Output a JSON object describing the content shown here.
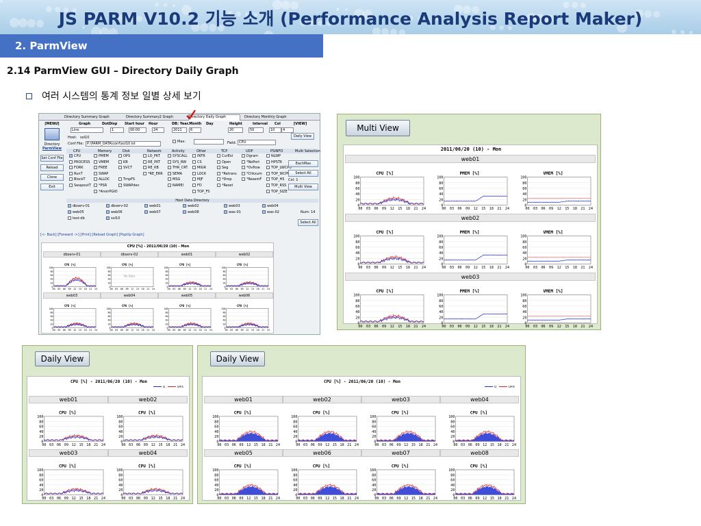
{
  "header": {
    "title": "JS PARM V10.2 기능 소개 (Performance Analysis Report Maker)",
    "section": "2.  ParmView",
    "subheading": "2.14   ParmView   GUI – Directory Daily Graph",
    "bullet_text": "여러 시스템의 통계 정보 일별 상세 보기"
  },
  "app": {
    "tabs": [
      "Directory Summary Graph",
      "Directory Summary2 Graph",
      "Directory Daily Graph",
      "Directory Monthly Graph"
    ],
    "left_menu_header": "[MENU]",
    "dir_label": "Directory",
    "parmview_label": "ParmView",
    "left_buttons": [
      "Set Conf File",
      "Reload",
      "Clone",
      "Exit"
    ],
    "control_headers": [
      "Graph",
      "DotDisp",
      "Start hour",
      "Hour",
      "DB: Year.Month",
      "Day",
      "Height",
      "Interval",
      "Col",
      "[VIEW]"
    ],
    "control_values": [
      "Line",
      "1",
      "00:00",
      "24",
      "2011",
      "6",
      "20",
      "50",
      "10",
      "4"
    ],
    "host_label": "Host:",
    "host_value": "sol10",
    "conf_label": "Conf File:",
    "conf_value": "P:\\PARM_DATA\\conf\\sol10.lst",
    "max_label": "Max:",
    "field_label": "Field:",
    "field_value": "CPU",
    "daily_view_btn": "Daily View",
    "metric_groups": [
      "CPU",
      "Memory",
      "Disk",
      "Network",
      "Activity",
      "Other",
      "TCP",
      "UDP",
      "PSINFO",
      "Multi Selection"
    ],
    "metric_cols": [
      [
        "CPU",
        "PROCESS",
        "FORK",
        "RunT",
        "BlockT",
        "SwapoutT"
      ],
      [
        "PMEM",
        "VMEM",
        "FREE",
        "SWAP",
        "ALLOC",
        "*PSR",
        "*AnonPGIO"
      ],
      [
        "OPS",
        "KB",
        "SVCT",
        "",
        "TmpFS",
        "SWAPdev"
      ],
      [
        "LO_PKT",
        "RE_PKT",
        "RE_KB",
        "*RE_ERR"
      ],
      [
        "SYSCALL",
        "SYS_RW",
        "THR_CRT",
        "SEMA",
        "MSG",
        "NAMEI"
      ],
      [
        "INTR",
        "CS",
        "MIGR",
        "LOCK",
        "MJF",
        "FD",
        "TOP_FS"
      ],
      [
        "CurEst",
        "Open",
        "Seg",
        "*Retrans",
        "*Drop",
        "*Reset"
      ],
      [
        "Dgram",
        "*NoPort",
        "*Ovflow",
        "*Chksum",
        "*ReasmF"
      ],
      [
        "NLWP",
        "HPSTK",
        "TOP_LWCPU",
        "TOP_WCPU",
        "TOP_HS",
        "TOP_RSS",
        "TOP_SIZE"
      ]
    ],
    "multi_buttons": [
      "EachMax",
      "Select All",
      "Multi View"
    ],
    "col_label": "Col:",
    "col_value": "1",
    "host_dir_label": "Host Data Directory",
    "hosts": [
      "dbserv-01",
      "dbserv-02",
      "web01",
      "web02",
      "web03",
      "web04",
      "web05",
      "web06",
      "web07",
      "web08",
      "was-01",
      "was-02",
      "test-db",
      "sol10"
    ],
    "num_label": "Num: 14",
    "select_all_label": "Select All",
    "nav_links": "[<- Back] [Forward ->] [Print] [Reload Graph] [PopUp Graph]",
    "preview_title": "CPU [%] - 2011/06/20 (10) - Mon",
    "preview_hosts": [
      "dbserv-01",
      "dbserv-02",
      "web01",
      "web02",
      "web03",
      "web04",
      "web05",
      "web06"
    ],
    "no_data": "No Data"
  },
  "multi_view": {
    "button": "Multi View",
    "title": "2011/06/20 (10) - Mon",
    "hosts": [
      "web01",
      "web02",
      "web03"
    ],
    "chart_titles": [
      "CPU [%]",
      "PMEM [%]",
      "VMEM [%]"
    ]
  },
  "daily_view_left": {
    "button": "Daily View",
    "title": "CPU [%] - 2011/06/20 (10) - Mon",
    "legend": [
      "u",
      "u+s"
    ],
    "hosts": [
      "web01",
      "web02",
      "web03",
      "web04"
    ],
    "chart_title": "CPU [%]"
  },
  "daily_view_right": {
    "button": "Daily View",
    "title": "CPU [%] - 2011/06/20 (10) - Mon",
    "legend": [
      "u",
      "u+s"
    ],
    "hosts": [
      "web01",
      "web02",
      "web03",
      "web04",
      "web05",
      "web06",
      "web07",
      "web08"
    ],
    "chart_title": "CPU [%]"
  },
  "axis": {
    "yticks": [
      "100",
      "80",
      "60",
      "40",
      "20",
      "0"
    ],
    "xticks": [
      "00",
      "03",
      "06",
      "09",
      "12",
      "15",
      "18",
      "21",
      "24"
    ]
  },
  "colors": {
    "u": "#1f2fd0",
    "us": "#e02020",
    "accent": "#4471c4"
  }
}
